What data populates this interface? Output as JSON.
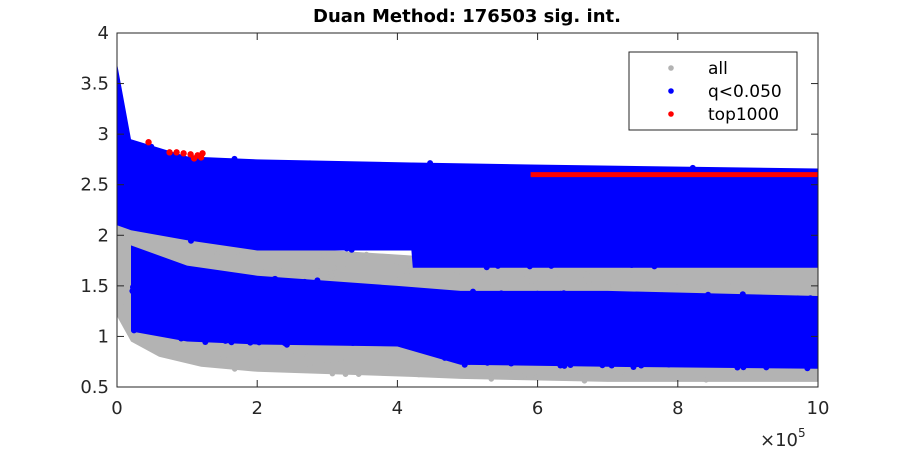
{
  "chart_data": {
    "type": "scatter",
    "title": "Duan Method: 176503 sig. int.",
    "xlabel": "",
    "ylabel": "",
    "xlim": [
      0,
      1000000
    ],
    "ylim": [
      0.5,
      4
    ],
    "x_exponent_label": {
      "base": "×10",
      "power": "5"
    },
    "x_ticks": [
      0,
      200000,
      400000,
      600000,
      800000,
      1000000
    ],
    "x_tick_labels": [
      "0",
      "2",
      "4",
      "6",
      "8",
      "10"
    ],
    "y_ticks": [
      0.5,
      1,
      1.5,
      2,
      2.5,
      3,
      3.5,
      4
    ],
    "y_tick_labels": [
      "0.5",
      "1",
      "1.5",
      "2",
      "2.5",
      "3",
      "3.5",
      "4"
    ],
    "grid": false,
    "legend_position": "top-right",
    "series": [
      {
        "name": "all",
        "color": "#b3b3b3",
        "envelope": [
          {
            "x": 0,
            "low": 1.2,
            "high": 3.7
          },
          {
            "x": 20000,
            "low": 0.95,
            "high": 2.7
          },
          {
            "x": 60000,
            "low": 0.8,
            "high": 2.4
          },
          {
            "x": 120000,
            "low": 0.7,
            "high": 2.1
          },
          {
            "x": 200000,
            "low": 0.65,
            "high": 1.9
          },
          {
            "x": 420000,
            "low": 0.6,
            "high": 1.8
          },
          {
            "x": 490000,
            "low": 0.58,
            "high": 1.7
          },
          {
            "x": 700000,
            "low": 0.55,
            "high": 1.7
          },
          {
            "x": 1000000,
            "low": 0.55,
            "high": 1.7
          }
        ]
      },
      {
        "name": "q<0.050",
        "color": "#0000ff",
        "upper_band": [
          {
            "x": 0,
            "low": 2.1,
            "high": 3.7
          },
          {
            "x": 20000,
            "low": 2.05,
            "high": 2.95
          },
          {
            "x": 100000,
            "low": 1.95,
            "high": 2.78
          },
          {
            "x": 200000,
            "low": 1.85,
            "high": 2.75
          },
          {
            "x": 420000,
            "low": 1.85,
            "high": 2.72
          },
          {
            "x": 422000,
            "low": 1.68,
            "high": 2.72
          },
          {
            "x": 590000,
            "low": 1.68,
            "high": 2.7
          },
          {
            "x": 1000000,
            "low": 1.68,
            "high": 2.66
          }
        ],
        "lower_band": [
          {
            "x": 20000,
            "low": 1.05,
            "high": 1.9
          },
          {
            "x": 100000,
            "low": 0.95,
            "high": 1.7
          },
          {
            "x": 200000,
            "low": 0.92,
            "high": 1.6
          },
          {
            "x": 400000,
            "low": 0.9,
            "high": 1.5
          },
          {
            "x": 490000,
            "low": 0.72,
            "high": 1.45
          },
          {
            "x": 700000,
            "low": 0.7,
            "high": 1.45
          },
          {
            "x": 1000000,
            "low": 0.68,
            "high": 1.4
          }
        ]
      },
      {
        "name": "top1000",
        "color": "#ff0000",
        "points": [
          {
            "x": 45000,
            "y": 2.92
          },
          {
            "x": 75000,
            "y": 2.82
          },
          {
            "x": 85000,
            "y": 2.82
          },
          {
            "x": 95000,
            "y": 2.81
          },
          {
            "x": 105000,
            "y": 2.8
          },
          {
            "x": 110000,
            "y": 2.76
          },
          {
            "x": 115000,
            "y": 2.79
          },
          {
            "x": 120000,
            "y": 2.77
          },
          {
            "x": 122000,
            "y": 2.81
          }
        ],
        "segments": [
          {
            "x0": 590000,
            "x1": 1000000,
            "y": 2.6
          }
        ]
      }
    ]
  }
}
